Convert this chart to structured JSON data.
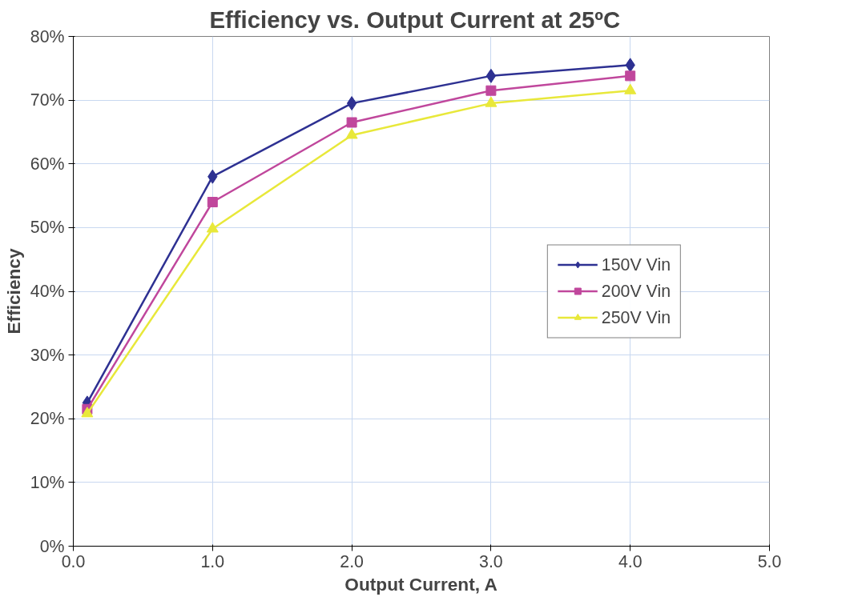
{
  "chart_data": {
    "type": "line",
    "title": "Efficiency vs. Output Current  at  25ºC",
    "xlabel": "Output Current, A",
    "ylabel": "Efficiency",
    "x": [
      0.1,
      1.0,
      2.0,
      3.0,
      4.0
    ],
    "series": [
      {
        "name": "150V Vin",
        "color": "#2e3192",
        "marker": "diamond",
        "values": [
          22.5,
          58,
          69.5,
          73.8,
          75.5
        ]
      },
      {
        "name": "200V Vin",
        "color": "#c0479c",
        "marker": "square",
        "values": [
          21.5,
          54,
          66.5,
          71.5,
          73.8
        ]
      },
      {
        "name": "250V Vin",
        "color": "#e8e83a",
        "marker": "triangle",
        "values": [
          20.8,
          49.8,
          64.5,
          69.5,
          71.5
        ]
      }
    ],
    "xlim": [
      0,
      5
    ],
    "xticks": [
      {
        "value": 0,
        "label": "0.0"
      },
      {
        "value": 1,
        "label": "1.0"
      },
      {
        "value": 2,
        "label": "2.0"
      },
      {
        "value": 3,
        "label": "3.0"
      },
      {
        "value": 4,
        "label": "4.0"
      },
      {
        "value": 5,
        "label": "5.0"
      }
    ],
    "ylim": [
      0,
      80
    ],
    "yticks": [
      {
        "value": 0,
        "label": "0%"
      },
      {
        "value": 10,
        "label": "10%"
      },
      {
        "value": 20,
        "label": "20%"
      },
      {
        "value": 30,
        "label": "30%"
      },
      {
        "value": 40,
        "label": "40%"
      },
      {
        "value": 50,
        "label": "50%"
      },
      {
        "value": 60,
        "label": "60%"
      },
      {
        "value": 70,
        "label": "70%"
      },
      {
        "value": 80,
        "label": "80%"
      }
    ],
    "grid": true,
    "legend": "right",
    "line_style": "solid"
  }
}
